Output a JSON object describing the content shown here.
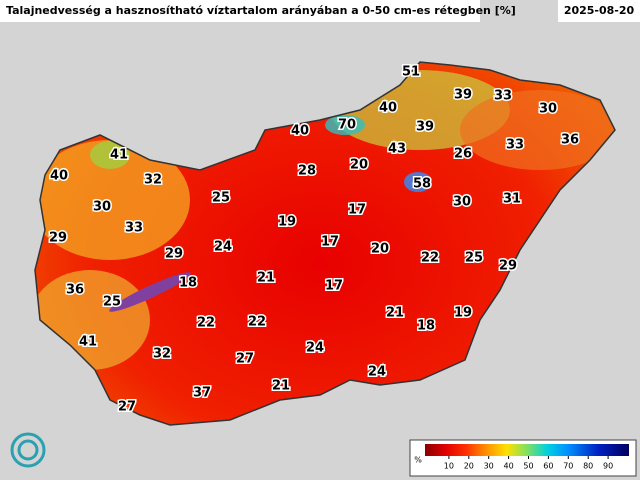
{
  "header": {
    "title": "Talajnedvesség a hasznosítható víztartalom arányában a 0-50 cm-es rétegben [%]",
    "date": "2025-08-20"
  },
  "stations": [
    51,
    39,
    33,
    30,
    40,
    70,
    39,
    40,
    36,
    43,
    26,
    33,
    28,
    20,
    58,
    41,
    40,
    32,
    30,
    25,
    17,
    30,
    31,
    19,
    33,
    29,
    24,
    17,
    20,
    22,
    25,
    29,
    29,
    21,
    18,
    17,
    36,
    25,
    21,
    19,
    18,
    22,
    22,
    41,
    32,
    24,
    27,
    24,
    21,
    37,
    27
  ],
  "colorbar": {
    "unit": "%",
    "ticks": [
      10,
      20,
      30,
      40,
      50,
      60,
      70,
      80,
      90
    ]
  }
}
